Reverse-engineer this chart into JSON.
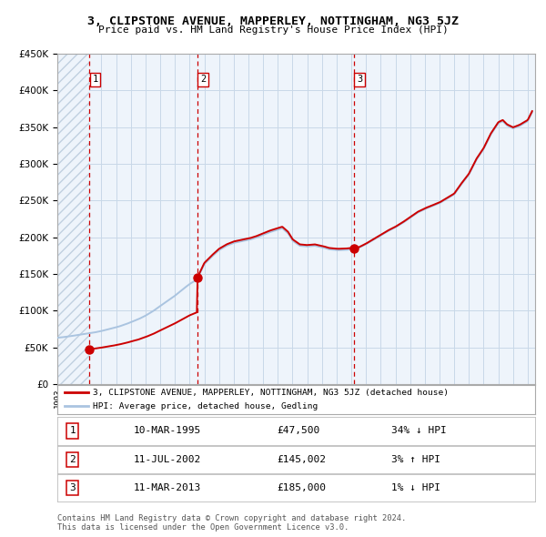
{
  "title": "3, CLIPSTONE AVENUE, MAPPERLEY, NOTTINGHAM, NG3 5JZ",
  "subtitle": "Price paid vs. HM Land Registry's House Price Index (HPI)",
  "legend_line1": "3, CLIPSTONE AVENUE, MAPPERLEY, NOTTINGHAM, NG3 5JZ (detached house)",
  "legend_line2": "HPI: Average price, detached house, Gedling",
  "transactions": [
    {
      "num": 1,
      "date": "10-MAR-1995",
      "price": 47500,
      "pct": "34%",
      "dir": "↓",
      "x": 1995.19
    },
    {
      "num": 2,
      "date": "11-JUL-2002",
      "price": 145002,
      "pct": "3%",
      "dir": "↑",
      "x": 2002.53
    },
    {
      "num": 3,
      "date": "11-MAR-2013",
      "price": 185000,
      "pct": "1%",
      "dir": "↓",
      "x": 2013.19
    }
  ],
  "footer1": "Contains HM Land Registry data © Crown copyright and database right 2024.",
  "footer2": "This data is licensed under the Open Government Licence v3.0.",
  "hpi_color": "#aac4e0",
  "price_color": "#cc0000",
  "dot_color": "#cc0000",
  "vline_color": "#cc0000",
  "grid_color": "#c8d8e8",
  "plot_bg": "#eef4fb",
  "hatch_color": "#c0d0e0",
  "ylim": [
    0,
    450000
  ],
  "xlim_start": 1993.0,
  "xlim_end": 2025.5
}
